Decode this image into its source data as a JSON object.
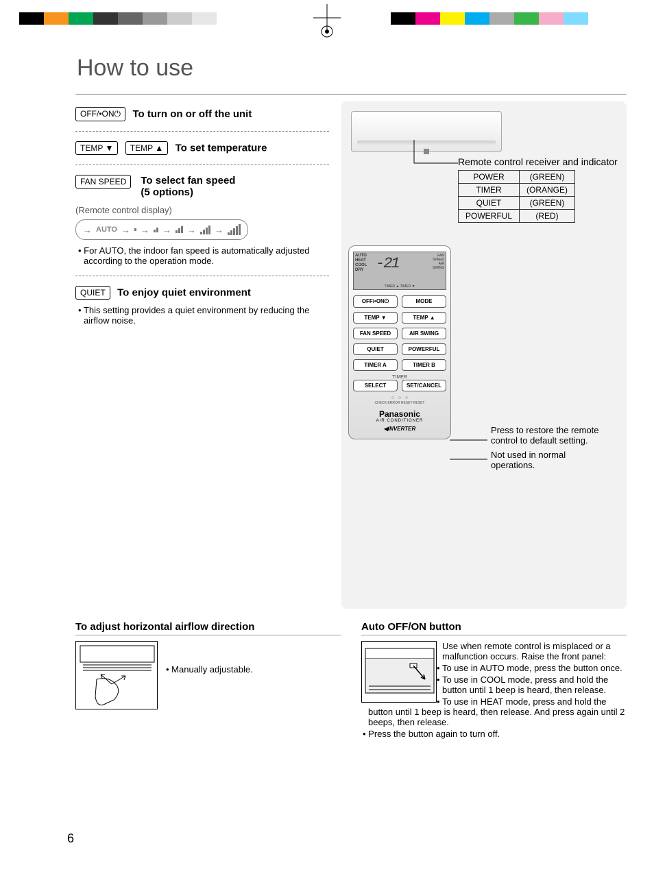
{
  "registration_bars": {
    "left_colors": [
      "#000000",
      "#f7931e",
      "#00a651",
      "#333333",
      "#666666",
      "#999999",
      "#cccccc",
      "#e6e6e6"
    ],
    "left_widths": [
      36,
      36,
      36,
      36,
      36,
      36,
      36,
      36
    ],
    "right_colors": [
      "#000000",
      "#ec008c",
      "#fff200",
      "#00aeef",
      "#aaaaaa",
      "#39b54a",
      "#f7adc9",
      "#7fdbff",
      "#ffffff"
    ],
    "right_widths": [
      36,
      36,
      36,
      36,
      36,
      36,
      36,
      36,
      36
    ]
  },
  "title": "How to use",
  "page_number": "6",
  "left_col": {
    "item1": {
      "btn": "OFF/•ON⏻",
      "heading": "To turn on or off the unit"
    },
    "item2": {
      "btn1": "TEMP ▼",
      "btn2": "TEMP ▲",
      "heading": "To set temperature"
    },
    "item3": {
      "btn": "FAN SPEED",
      "heading_l1": "To select fan speed",
      "heading_l2": "(5 options)",
      "caption": "(Remote control display)",
      "auto_label": "AUTO",
      "note": "For AUTO, the indoor fan speed is automatically adjusted according to the operation mode."
    },
    "item4": {
      "btn": "QUIET",
      "heading": "To enjoy quiet environment",
      "note": "This setting provides a quiet environment by reducing the airflow noise."
    }
  },
  "right_col": {
    "indicator_caption": "Remote control receiver and indicator",
    "indicator_rows": [
      {
        "name": "POWER",
        "color": "(GREEN)"
      },
      {
        "name": "TIMER",
        "color": "(ORANGE)"
      },
      {
        "name": "QUIET",
        "color": "(GREEN)"
      },
      {
        "name": "POWERFUL",
        "color": "(RED)"
      }
    ],
    "remote": {
      "lcd_modes": "AUTO\nHEAT\nCOOL\nDRY",
      "lcd_temp": "-21",
      "lcd_right": "FAN\nSPEED\nAIR\nSWING",
      "lcd_bottom": "TIMER ▲   TIMER ▼",
      "buttons": [
        [
          "OFF/•ON⏻",
          "MODE"
        ],
        [
          "TEMP ▼",
          "TEMP ▲"
        ],
        [
          "FAN SPEED",
          "AIR SWING"
        ],
        [
          "QUIET",
          "POWERFUL"
        ],
        [
          "TIMER A",
          "TIMER B"
        ]
      ],
      "timer_label": "TIMER",
      "buttons2": [
        [
          "SELECT",
          "SET/CANCEL"
        ]
      ],
      "dots_label": "CHECK   ERROR RESET  RESET",
      "brand": "Panasonic",
      "sub": "AIR CONDITIONER",
      "inverter": "INVERTER"
    },
    "callout1": "Press to restore the remote control to default setting.",
    "callout2": "Not used in normal operations."
  },
  "bottom": {
    "left": {
      "heading": "To adjust horizontal airflow direction",
      "note": "Manually adjustable."
    },
    "right": {
      "heading": "Auto OFF/ON button",
      "intro": "Use when remote control is misplaced or a malfunction occurs. Raise the front panel:",
      "bullets": [
        "To use in AUTO mode, press the button once.",
        "To use in COOL mode, press and hold the button until 1 beep is heard, then release.",
        "To use in HEAT mode, press and hold the button until 1 beep is heard, then  release. And press again until 2 beeps, then release.",
        "Press the button again to turn off."
      ]
    }
  }
}
